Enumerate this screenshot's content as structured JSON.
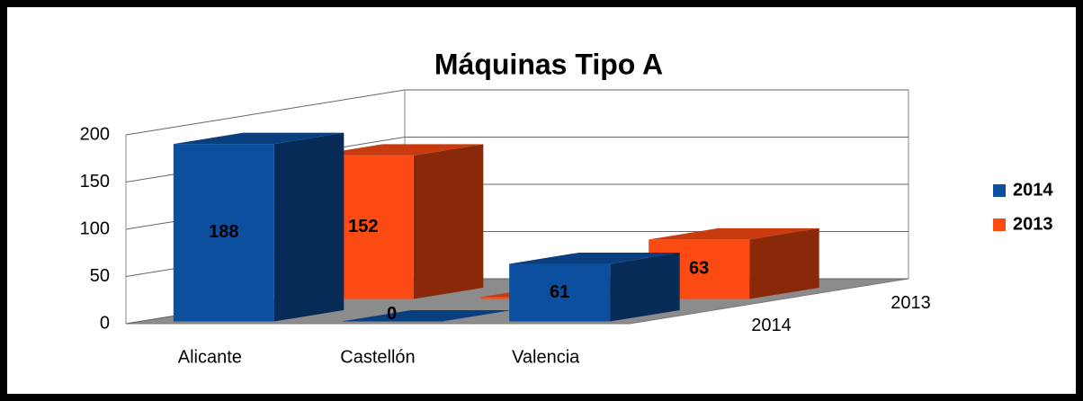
{
  "chart_data": {
    "type": "bar",
    "title": "Máquinas Tipo A",
    "categories": [
      "Alicante",
      "Castellón",
      "Valencia"
    ],
    "series": [
      {
        "name": "2014",
        "color": "#0d4f9f",
        "values": [
          188,
          0,
          61
        ]
      },
      {
        "name": "2013",
        "color": "#fb4a12",
        "values": [
          152,
          2,
          63
        ]
      }
    ],
    "ylim": [
      0,
      200
    ],
    "yticks": [
      0,
      50,
      100,
      150,
      200
    ],
    "grid": true,
    "legend": "right"
  }
}
